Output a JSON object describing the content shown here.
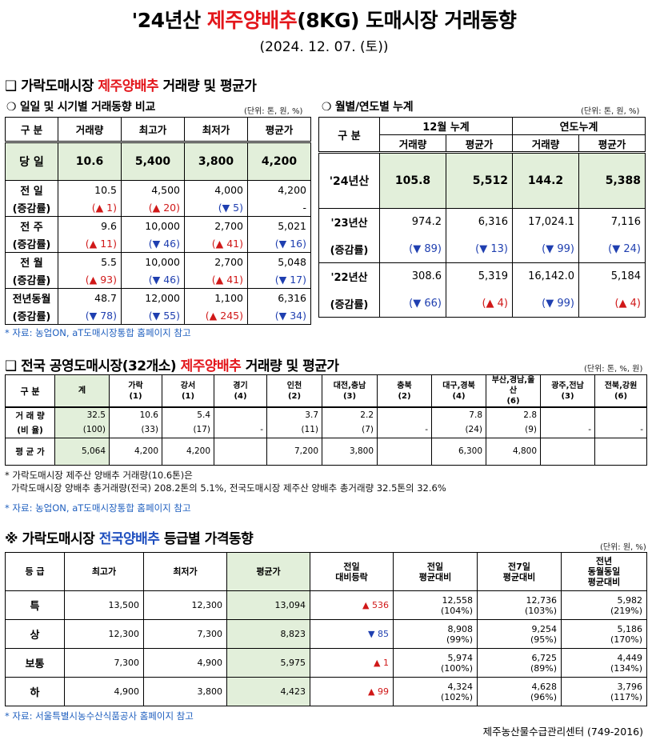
{
  "header": {
    "title_pre": "'24년산 ",
    "title_red": "제주양배추",
    "title_post": "(8KG) 도매시장 거래동향",
    "date": "(2024. 12. 07. (토))"
  },
  "section1": {
    "title_pre": "❑ 가락도매시장 ",
    "title_red": "제주양배추",
    "title_post": " 거래량 및 평균가",
    "daily": {
      "subtitle": "❍ 일일 및 시기별 거래동향 비교",
      "unit": "(단위: 톤, 원, %)",
      "headers": [
        "구  분",
        "거래량",
        "최고가",
        "최저가",
        "평균가"
      ],
      "today": {
        "label": "당  일",
        "values": [
          "10.6",
          "5,400",
          "3,800",
          "4,200"
        ]
      },
      "rows": [
        {
          "label1": "전  일",
          "label2": "(증감률)",
          "values": [
            "10.5",
            "4,500",
            "4,000",
            "4,200"
          ],
          "changes": [
            {
              "t": "(▲ 1)",
              "d": "up"
            },
            {
              "t": "(▲ 20)",
              "d": "up"
            },
            {
              "t": "(▼ 5)",
              "d": "dn"
            },
            {
              "t": "-",
              "d": ""
            }
          ]
        },
        {
          "label1": "전  주",
          "label2": "(증감률)",
          "values": [
            "9.6",
            "10,000",
            "2,700",
            "5,021"
          ],
          "changes": [
            {
              "t": "(▲ 11)",
              "d": "up"
            },
            {
              "t": "(▼ 46)",
              "d": "dn"
            },
            {
              "t": "(▲ 41)",
              "d": "up"
            },
            {
              "t": "(▼ 16)",
              "d": "dn"
            }
          ]
        },
        {
          "label1": "전  월",
          "label2": "(증감률)",
          "values": [
            "5.5",
            "10,000",
            "2,700",
            "5,048"
          ],
          "changes": [
            {
              "t": "(▲ 93)",
              "d": "up"
            },
            {
              "t": "(▼ 46)",
              "d": "dn"
            },
            {
              "t": "(▲ 41)",
              "d": "up"
            },
            {
              "t": "(▼ 17)",
              "d": "dn"
            }
          ]
        },
        {
          "label1": "전년동월",
          "label2": "(증감률)",
          "values": [
            "48.7",
            "12,000",
            "1,100",
            "6,316"
          ],
          "changes": [
            {
              "t": "(▼ 78)",
              "d": "dn"
            },
            {
              "t": "(▼ 55)",
              "d": "dn"
            },
            {
              "t": "(▲ 245)",
              "d": "up"
            },
            {
              "t": "(▼ 34)",
              "d": "dn"
            }
          ]
        }
      ]
    },
    "monthly": {
      "subtitle": "❍ 월별/연도별 누계",
      "unit": "(단위: 톤, 원, %)",
      "head_label": "구  분",
      "group1": "12월 누계",
      "group2": "연도누계",
      "cols": [
        "거래량",
        "평균가",
        "거래량",
        "평균가"
      ],
      "current": {
        "label": "'24년산",
        "values": [
          "105.8",
          "5,512",
          "144.2",
          "5,388"
        ]
      },
      "rows": [
        {
          "label1": "'23년산",
          "label2": "(증감률)",
          "values": [
            "974.2",
            "6,316",
            "17,024.1",
            "7,116"
          ],
          "changes": [
            {
              "t": "(▼ 89)",
              "d": "dn"
            },
            {
              "t": "(▼ 13)",
              "d": "dn"
            },
            {
              "t": "(▼ 99)",
              "d": "dn"
            },
            {
              "t": "(▼ 24)",
              "d": "dn"
            }
          ]
        },
        {
          "label1": "'22년산",
          "label2": "(증감률)",
          "values": [
            "308.6",
            "5,319",
            "16,142.0",
            "5,184"
          ],
          "changes": [
            {
              "t": "(▼ 66)",
              "d": "dn"
            },
            {
              "t": "(▲ 4)",
              "d": "up"
            },
            {
              "t": "(▼ 99)",
              "d": "dn"
            },
            {
              "t": "(▲ 4)",
              "d": "up"
            }
          ]
        }
      ]
    },
    "note": "* 자료: 농업ON, aT도매시장통합 홈페이지 참고"
  },
  "section2": {
    "title_pre": "❑ 전국 공영도매시장(32개소) ",
    "title_red": "제주양배추",
    "title_post": " 거래량 및 평균가",
    "unit": "(단위: 톤, %, 원)",
    "head_label": "구  분",
    "markets": [
      {
        "n": "계",
        "c": ""
      },
      {
        "n": "가락",
        "c": "(1)"
      },
      {
        "n": "강서",
        "c": "(1)"
      },
      {
        "n": "경기",
        "c": "(4)"
      },
      {
        "n": "인천",
        "c": "(2)"
      },
      {
        "n": "대전,충남",
        "c": "(3)"
      },
      {
        "n": "충북",
        "c": "(2)"
      },
      {
        "n": "대구,경북",
        "c": "(4)"
      },
      {
        "n": "부산,경남,울산",
        "c": "(6)"
      },
      {
        "n": "광주,전남",
        "c": "(3)"
      },
      {
        "n": "전북,강원",
        "c": "(6)"
      }
    ],
    "volume_label": "거 래 량",
    "ratio_label": "(비 율)",
    "avg_label": "평 균 가",
    "volume": [
      "32.5",
      "10.6",
      "5.4",
      "",
      "3.7",
      "2.2",
      "",
      "7.8",
      "2.8",
      "",
      ""
    ],
    "ratio": [
      "(100)",
      "(33)",
      "(17)",
      "-",
      "(11)",
      "(7)",
      "-",
      "(24)",
      "(9)",
      "-",
      "-"
    ],
    "avg": [
      "5,064",
      "4,200",
      "4,200",
      "",
      "7,200",
      "3,800",
      "",
      "6,300",
      "4,800",
      "",
      ""
    ],
    "note_line1": "* 가락도매시장 제주산 양배추 거래량(10.6톤)은",
    "note_line2": "가락도매시장 양배추 총거래량(전국) 208.2톤의 5.1%, 전국도매시장 제주산 양배추 총거래량 32.5톤의 32.6%",
    "note_source": "* 자료: 농업ON, aT도매시장통합 홈페이지 참고"
  },
  "section3": {
    "title_pre": "※ 가락도매시장 ",
    "title_blue": "전국양배추",
    "title_post": " 등급별 가격동향",
    "unit": "(단위: 원, %)",
    "headers": [
      "등  급",
      "최고가",
      "최저가",
      "평균가",
      "전일\n대비등락",
      "전일\n평균대비",
      "전7일\n평균대비",
      "전년\n동월동일\n평균대비"
    ],
    "rows": [
      {
        "grade": "특",
        "max": "13,500",
        "min": "12,300",
        "avg": "13,094",
        "chg": "▲ 536",
        "d": "up",
        "prev": "12,558",
        "prev_p": "(104%)",
        "w7": "12,736",
        "w7_p": "(103%)",
        "ly": "5,982",
        "ly_p": "(219%)"
      },
      {
        "grade": "상",
        "max": "12,300",
        "min": "7,300",
        "avg": "8,823",
        "chg": "▼ 85",
        "d": "dn",
        "prev": "8,908",
        "prev_p": "(99%)",
        "w7": "9,254",
        "w7_p": "(95%)",
        "ly": "5,186",
        "ly_p": "(170%)"
      },
      {
        "grade": "보통",
        "max": "7,300",
        "min": "4,900",
        "avg": "5,975",
        "chg": "▲ 1",
        "d": "up",
        "prev": "5,974",
        "prev_p": "(100%)",
        "w7": "6,725",
        "w7_p": "(89%)",
        "ly": "4,449",
        "ly_p": "(134%)"
      },
      {
        "grade": "하",
        "max": "4,900",
        "min": "3,800",
        "avg": "4,423",
        "chg": "▲ 99",
        "d": "up",
        "prev": "4,324",
        "prev_p": "(102%)",
        "w7": "4,628",
        "w7_p": "(96%)",
        "ly": "3,796",
        "ly_p": "(117%)"
      }
    ],
    "note": "* 자료: 서울특별시농수산식품공사 홈페이지 참고"
  },
  "footer": "제주농산물수급관리센터 (749-2016)",
  "colors": {
    "red": "#e3161b",
    "blue": "#1f4fbf",
    "highlight": "#e2efda"
  }
}
